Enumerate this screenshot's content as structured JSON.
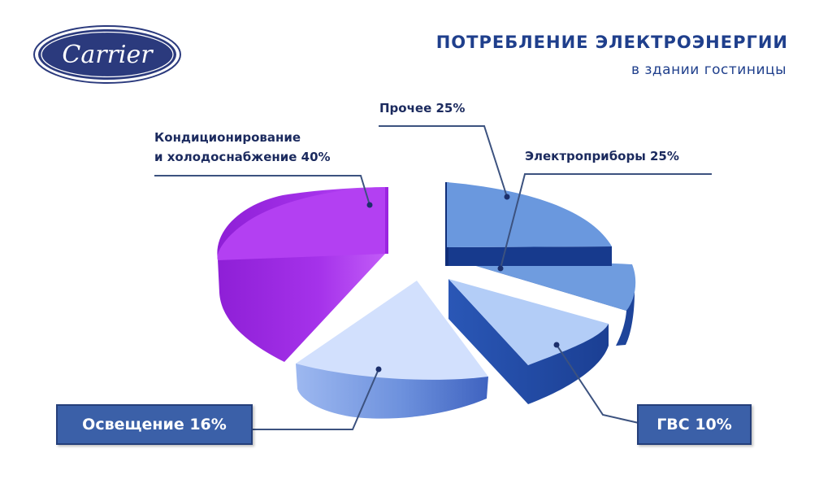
{
  "brand": {
    "logo_text": "Carrier",
    "color": "#2b3a7d"
  },
  "header": {
    "title": "ПОТРЕБЛЕНИЕ ЭЛЕКТРОЭНЕРГИИ",
    "subtitle": "в здании гостиницы"
  },
  "labels": {
    "cooling_line1": "Кондиционирование",
    "cooling_line2": "и холодоснабжение 40%",
    "other": "Прочее 25%",
    "appliances": "Электроприборы 25%",
    "lighting": "Освещение 16%",
    "hot_water": "ГВС 10%"
  },
  "chart_data": {
    "type": "pie",
    "style": "3d-exploded",
    "slices": [
      {
        "label": "Кондиционирование и холодоснабжение",
        "value": 40,
        "color": "#b340f2"
      },
      {
        "label": "Освещение",
        "value": 16,
        "color": "#d2e0fd"
      },
      {
        "label": "ГВС",
        "value": 10,
        "color": "#b3cdf7"
      },
      {
        "label": "Электроприборы",
        "value": 25,
        "color": "#6f9cdf"
      },
      {
        "label": "Прочее",
        "value": 25,
        "color": "#6a98de"
      }
    ]
  }
}
